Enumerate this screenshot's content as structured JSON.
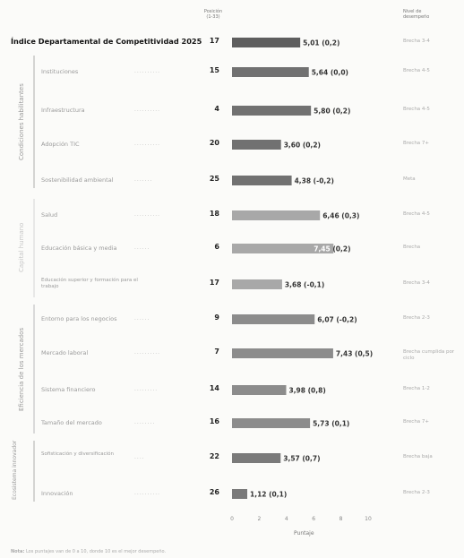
{
  "header": {
    "position_label": "Posición",
    "position_sub": "(1-33)",
    "status_label": "Nivel de",
    "status_sub": "desempeño"
  },
  "chart_data": {
    "type": "bar",
    "orientation": "horizontal",
    "xlabel": "Puntaje",
    "xlim": [
      0,
      11
    ],
    "xticks": [
      0,
      2,
      4,
      6,
      8,
      10
    ],
    "rows": [
      {
        "label": "Índice Departamental de Competitividad 2025",
        "dots": "......",
        "position": "17",
        "value": 5.01,
        "change": "(0,2)",
        "value_label": "5,01",
        "status": "Brecha 3-4",
        "group": "index"
      },
      {
        "label": "Instituciones",
        "dots": "..........",
        "position": "15",
        "value": 5.64,
        "change": "(0,0)",
        "value_label": "5,64",
        "status": "Brecha 4-5",
        "group": "condiciones"
      },
      {
        "label": "Infraestructura",
        "dots": "..........",
        "position": "4",
        "value": 5.8,
        "change": "(0,2)",
        "value_label": "5,80",
        "status": "Brecha 4-5",
        "group": "condiciones"
      },
      {
        "label": "Adopción TIC",
        "dots": "..........",
        "position": "20",
        "value": 3.6,
        "change": "(0,2)",
        "value_label": "3,60",
        "status": "Brecha 7+",
        "group": "condiciones"
      },
      {
        "label": "Sostenibilidad ambiental",
        "dots": ".......",
        "position": "25",
        "value": 4.38,
        "change": "(-0,2)",
        "value_label": "4,38",
        "status": "Meta",
        "group": "condiciones"
      },
      {
        "label": "Salud",
        "dots": "..........",
        "position": "18",
        "value": 6.46,
        "change": "(0,3)",
        "value_label": "6,46",
        "status": "Brecha 4-5",
        "group": "capital"
      },
      {
        "label": "Educación básica y media",
        "dots": "......",
        "position": "6",
        "value": 7.45,
        "change": "(0,2)",
        "value_label": "7,45",
        "status": "Brecha",
        "group": "capital",
        "label_inside": true
      },
      {
        "label": "Educación superior y formación para el trabajo",
        "dots": "",
        "position": "17",
        "value": 3.68,
        "change": "(-0,1)",
        "value_label": "3,68",
        "status": "Brecha 3-4",
        "group": "capital"
      },
      {
        "label": "Entorno para los negocios",
        "dots": "......",
        "position": "9",
        "value": 6.07,
        "change": "(-0,2)",
        "value_label": "6,07",
        "status": "Brecha 2-3",
        "group": "eficiencia"
      },
      {
        "label": "Mercado laboral",
        "dots": "..........",
        "position": "7",
        "value": 7.43,
        "change": "(0,5)",
        "value_label": "7,43",
        "status": "Brecha cumplida por ciclo",
        "group": "eficiencia"
      },
      {
        "label": "Sistema financiero",
        "dots": ".........",
        "position": "14",
        "value": 3.98,
        "change": "(0,8)",
        "value_label": "3,98",
        "status": "Brecha 1-2",
        "group": "eficiencia"
      },
      {
        "label": "Tamaño del mercado",
        "dots": "........",
        "position": "16",
        "value": 5.73,
        "change": "(0,1)",
        "value_label": "5,73",
        "status": "Brecha 7+",
        "group": "eficiencia"
      },
      {
        "label": "Sofisticación y diversificación",
        "dots": "....",
        "position": "22",
        "value": 3.57,
        "change": "(0,7)",
        "value_label": "3,57",
        "status": "Brecha baja",
        "group": "ecosistema"
      },
      {
        "label": "Innovación",
        "dots": "..........",
        "position": "26",
        "value": 1.12,
        "change": "(0,1)",
        "value_label": "1,12",
        "status": "Brecha 2-3",
        "group": "ecosistema"
      }
    ],
    "groups": [
      {
        "id": "condiciones",
        "label": "Condiciones habilitantes"
      },
      {
        "id": "capital",
        "label": "Capital humano"
      },
      {
        "id": "eficiencia",
        "label": "Eficiencia de los mercados"
      },
      {
        "id": "ecosistema",
        "label": "Ecosistema innovador"
      }
    ],
    "colors": {
      "index": "#5e5e5e",
      "condiciones": "#717171",
      "capital": "#a8a8a8",
      "eficiencia": "#8c8c8c",
      "ecosistema": "#7a7a7a"
    }
  },
  "note": {
    "label": "Nota:",
    "text": "Los puntajes van de 0 a 10, donde 10 es el mejor desempeño."
  }
}
